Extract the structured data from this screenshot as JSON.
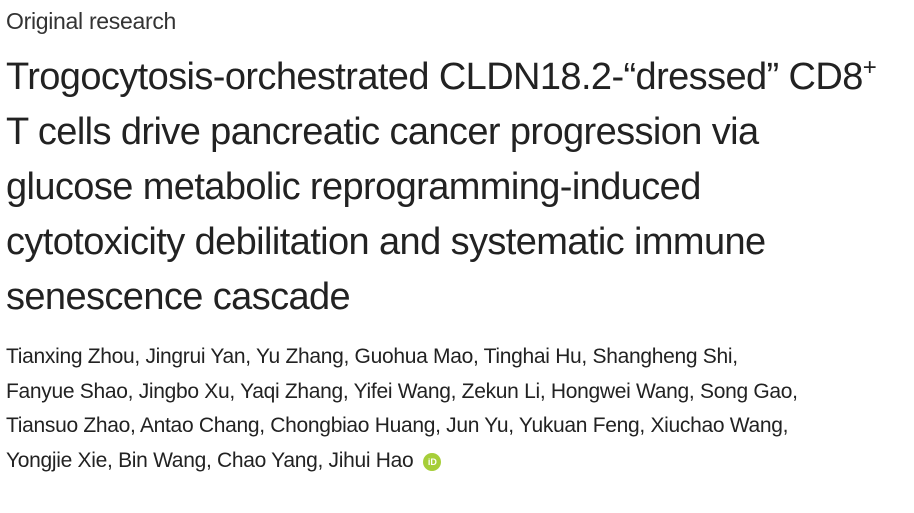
{
  "header": {
    "section": "Original research"
  },
  "title": {
    "first_line": "Trogocytosis-orchestrated CLDN18.2-“dressed” CD8",
    "first_line_sup": "+",
    "lines": [
      "T cells drive pancreatic cancer progression via",
      "glucose metabolic reprogramming-induced",
      "cytotoxicity debilitation and systematic immune",
      "senescence cascade"
    ]
  },
  "authors": {
    "lines": [
      "Tianxing Zhou, Jingrui Yan, Yu Zhang, Guohua Mao, Tinghai Hu, Shangheng Shi,",
      "Fanyue Shao, Jingbo Xu, Yaqi Zhang, Yifei Wang, Zekun Li, Hongwei Wang, Song Gao,",
      "Tiansuo Zhao, Antao Chang, Chongbiao Huang, Jun Yu, Yukuan Feng, Xiuchao Wang,",
      "Yongjie Xie, Bin Wang, Chao Yang, Jihui Hao"
    ],
    "orcid_icon": "iD"
  }
}
